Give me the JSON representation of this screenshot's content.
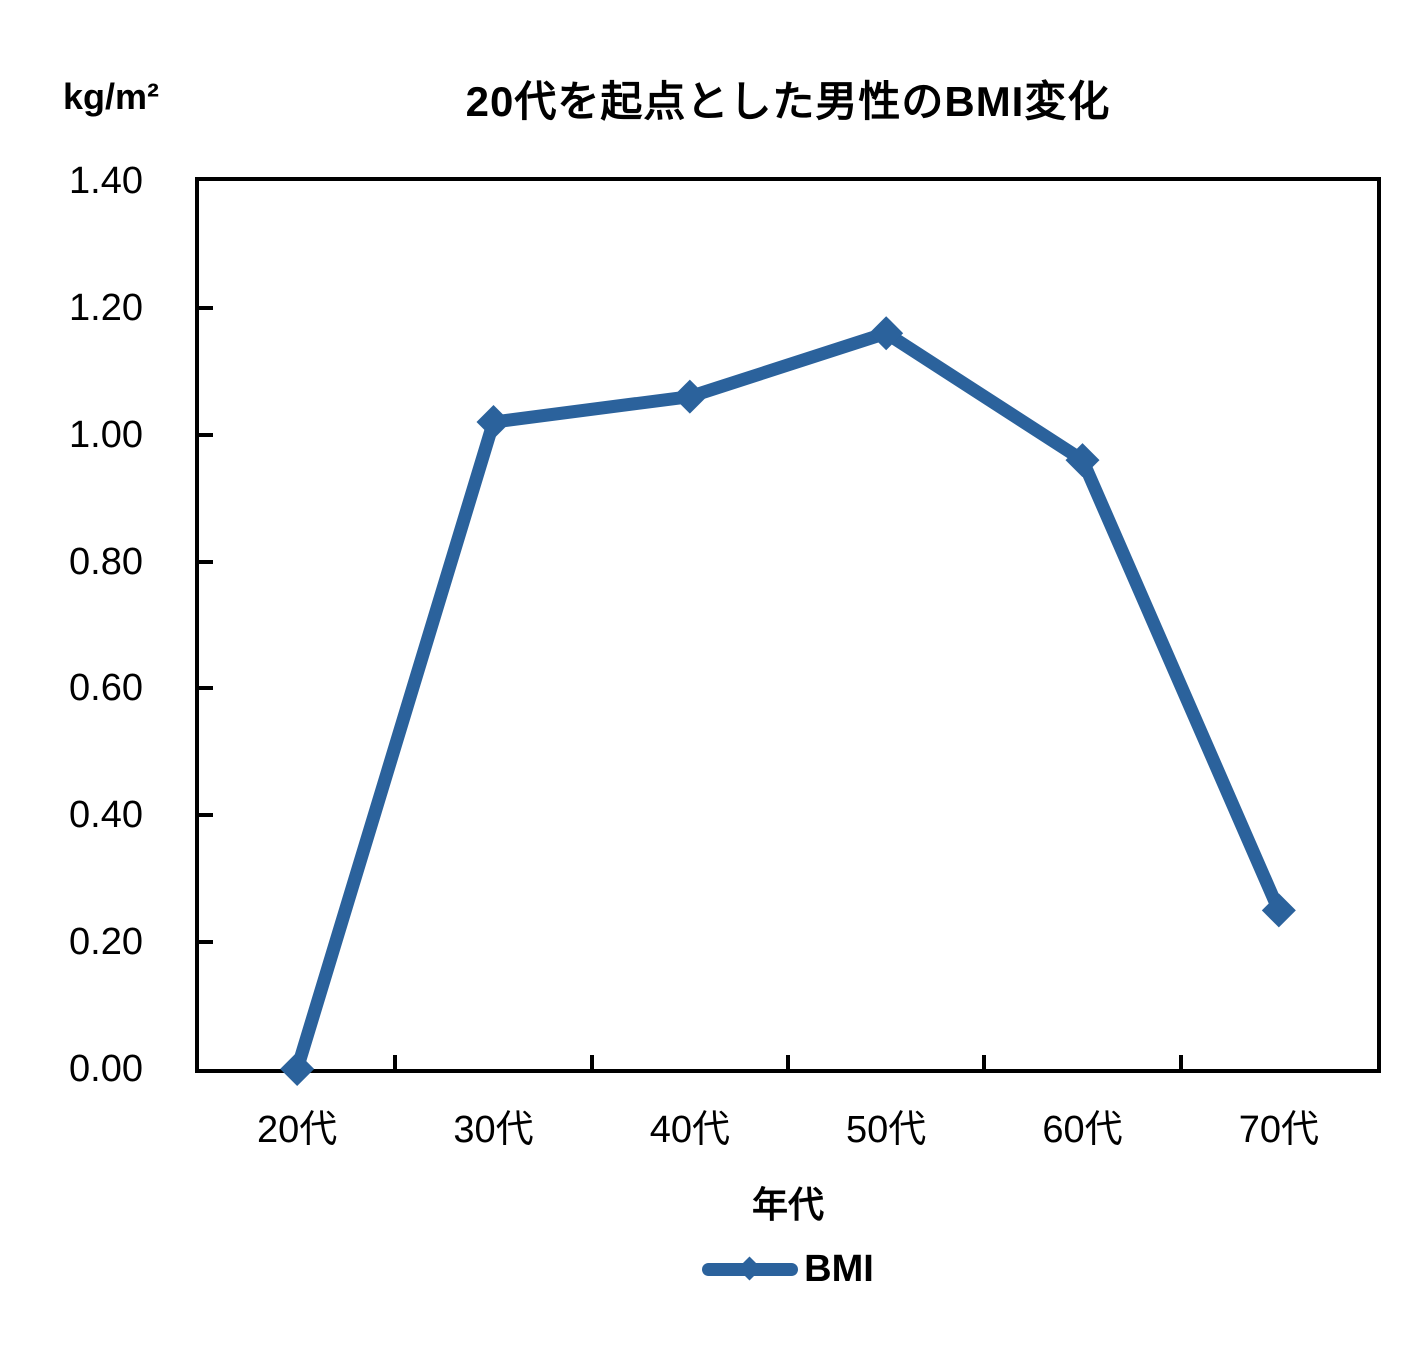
{
  "chart_data": {
    "type": "line",
    "title": "20代を起点とした男性のBMI変化",
    "categories": [
      "20代",
      "30代",
      "40代",
      "50代",
      "60代",
      "70代"
    ],
    "series": [
      {
        "name": "BMI",
        "values": [
          0.0,
          1.02,
          1.06,
          1.16,
          0.96,
          0.25
        ]
      }
    ],
    "xlabel": "年代",
    "ylabel": "kg/m²",
    "ylim": [
      0.0,
      1.4
    ],
    "ytick_step": 0.2,
    "ytick_labels": [
      "1.40",
      "1.20",
      "1.00",
      "0.80",
      "0.60",
      "0.40",
      "0.20",
      "0.00"
    ],
    "grid": false,
    "legend": {
      "position": "bottom",
      "entries": [
        "BMI"
      ]
    },
    "marker_style": "diamond",
    "colors": {
      "line": "#2B629C",
      "marker": "#2B629C",
      "axis": "#000000",
      "text": "#000000",
      "background": "#FFFFFF"
    }
  }
}
